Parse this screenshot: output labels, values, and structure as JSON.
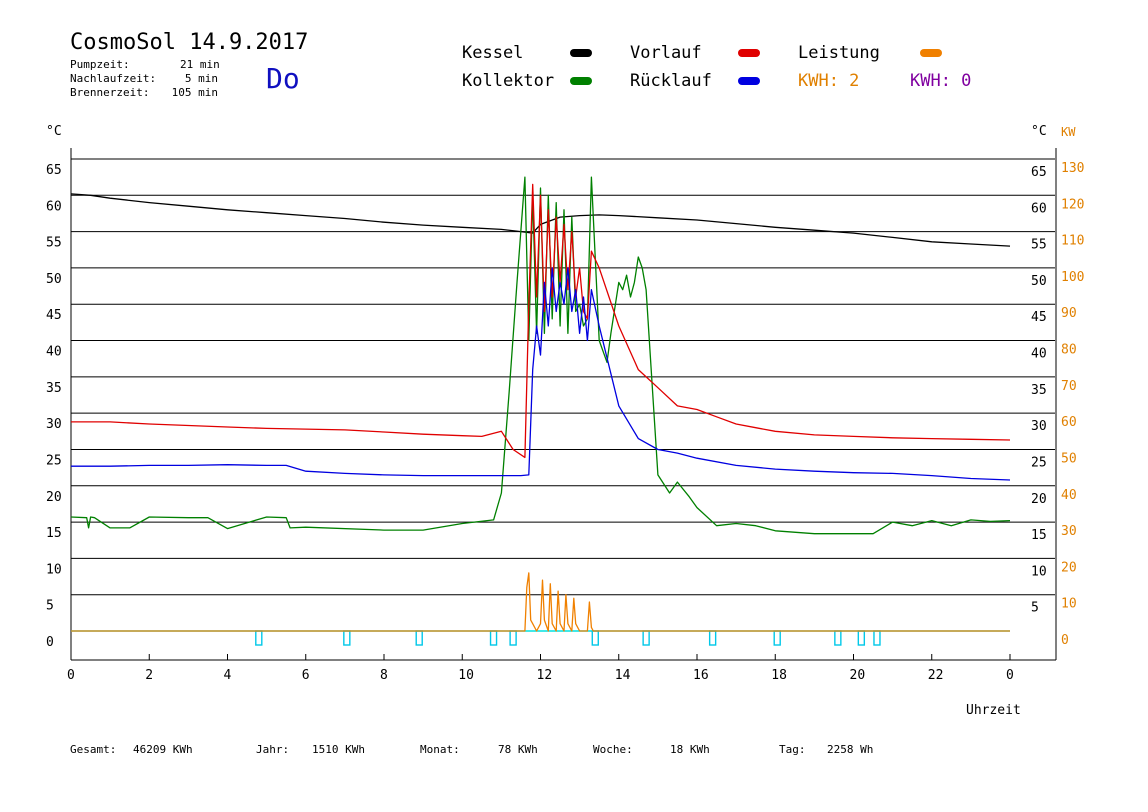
{
  "header": {
    "title": "CosmoSol 14.9.2017",
    "weekday": "Do",
    "info": [
      {
        "label": "Pumpzeit:",
        "value": "21 min"
      },
      {
        "label": "Nachlaufzeit:",
        "value": "5 min"
      },
      {
        "label": "Brennerzeit:",
        "value": "105 min"
      }
    ]
  },
  "legend": {
    "kessel": {
      "label": "Kessel",
      "color": "#000000"
    },
    "kollektor": {
      "label": "Kollektor",
      "color": "#008000"
    },
    "vorlauf": {
      "label": "Vorlauf",
      "color": "#e00000"
    },
    "ruecklauf": {
      "label": "Rücklauf",
      "color": "#0000e0"
    },
    "leistung": {
      "label": "Leistung",
      "color": "#f08000"
    },
    "kwh1": {
      "label": "KWH: 2",
      "color": "#e08000"
    },
    "kwh2": {
      "label": "KWH: 0",
      "color": "#8000a0"
    }
  },
  "footer": {
    "gesamt": {
      "label": "Gesamt:",
      "value": "46209 KWh"
    },
    "jahr": {
      "label": "Jahr:",
      "value": "1510 KWh"
    },
    "monat": {
      "label": "Monat:",
      "value": "78 KWh"
    },
    "woche": {
      "label": "Woche:",
      "value": "18 KWh"
    },
    "tag": {
      "label": "Tag:",
      "value": "2258 Wh"
    }
  },
  "chart_data": {
    "type": "line",
    "xlabel": "Uhrzeit",
    "ylabel_left": "°C",
    "ylabel_right": "°C",
    "ylabel_right2": "KW",
    "xlim": [
      0,
      24
    ],
    "ylim": [
      0,
      65
    ],
    "y2lim": [
      0,
      130
    ],
    "x_ticks": [
      "0",
      "2",
      "4",
      "6",
      "8",
      "10",
      "12",
      "14",
      "16",
      "18",
      "20",
      "22",
      "0"
    ],
    "y_ticks": [
      0,
      5,
      10,
      15,
      20,
      25,
      30,
      35,
      40,
      45,
      50,
      55,
      60,
      65
    ],
    "y2_ticks": [
      0,
      10,
      20,
      30,
      40,
      50,
      60,
      70,
      80,
      90,
      100,
      110,
      120,
      130
    ],
    "grid": "horizontal",
    "series": [
      {
        "name": "Kessel",
        "color": "#000000",
        "x": [
          0,
          0.5,
          1,
          2,
          3,
          4,
          5,
          6,
          7,
          8,
          9,
          10,
          11,
          11.5,
          11.8,
          12,
          12.5,
          13,
          13.5,
          14,
          15,
          16,
          17,
          18,
          19,
          20,
          21,
          22,
          23,
          24
        ],
        "y": [
          60.2,
          60,
          59.6,
          59,
          58.5,
          58,
          57.6,
          57.2,
          56.8,
          56.3,
          55.9,
          55.6,
          55.3,
          55,
          54.8,
          56,
          57,
          57.2,
          57.3,
          57.2,
          56.9,
          56.6,
          56.1,
          55.6,
          55.2,
          54.8,
          54.2,
          53.6,
          53.3,
          53
        ]
      },
      {
        "name": "Kollektor",
        "color": "#008000",
        "x": [
          0,
          0.4,
          0.45,
          0.5,
          0.6,
          1,
          1.5,
          2,
          3,
          3.5,
          4,
          5,
          5.5,
          5.6,
          6,
          8,
          9,
          10,
          10.8,
          11,
          11.2,
          11.4,
          11.6,
          11.7,
          11.8,
          11.9,
          12,
          12.1,
          12.2,
          12.3,
          12.4,
          12.5,
          12.6,
          12.7,
          12.8,
          12.9,
          13,
          13.1,
          13.2,
          13.3,
          13.5,
          13.7,
          13.8,
          14,
          14.1,
          14.2,
          14.3,
          14.4,
          14.5,
          14.6,
          14.7,
          15,
          15.3,
          15.5,
          15.8,
          16,
          16.5,
          17,
          17.5,
          18,
          19,
          20,
          20.5,
          21,
          21.5,
          22,
          22.5,
          23,
          23.5,
          24
        ],
        "y": [
          15.7,
          15.6,
          14.2,
          15.7,
          15.6,
          14.2,
          14.2,
          15.7,
          15.6,
          15.6,
          14.1,
          15.7,
          15.6,
          14.2,
          14.3,
          13.9,
          13.9,
          14.8,
          15.3,
          19,
          33,
          48,
          62.5,
          40,
          60,
          41,
          61,
          41,
          60,
          43,
          59,
          42,
          58,
          41,
          57,
          44,
          45,
          42,
          43,
          62.5,
          40,
          37,
          41,
          48,
          47,
          49,
          46,
          48,
          51.5,
          50,
          47,
          21.5,
          19,
          20.5,
          18.5,
          17,
          14.5,
          14.8,
          14.5,
          13.8,
          13.4,
          13.4,
          13.4,
          15,
          14.5,
          15.2,
          14.5,
          15.3,
          15.1,
          15.2
        ]
      },
      {
        "name": "Vorlauf",
        "color": "#e00000",
        "x": [
          0,
          1,
          2,
          3,
          4,
          5,
          6,
          7,
          8,
          9,
          10,
          10.5,
          11,
          11.3,
          11.6,
          11.7,
          11.8,
          11.9,
          12,
          12.1,
          12.2,
          12.3,
          12.4,
          12.5,
          12.6,
          12.7,
          12.8,
          12.9,
          13,
          13.1,
          13.2,
          13.3,
          13.5,
          14,
          14.5,
          15,
          15.5,
          16,
          16.5,
          17,
          17.5,
          18,
          19,
          20,
          21,
          22,
          23,
          24
        ],
        "y": [
          28.8,
          28.8,
          28.5,
          28.3,
          28.1,
          27.9,
          27.8,
          27.7,
          27.4,
          27.1,
          26.9,
          26.8,
          27.5,
          25,
          23.9,
          45,
          61.5,
          46,
          60,
          44,
          58,
          46,
          57,
          48,
          56,
          47,
          55,
          46,
          50,
          44,
          43,
          52.3,
          50,
          42,
          36,
          33.5,
          31,
          30.5,
          29.5,
          28.5,
          28,
          27.5,
          27,
          26.8,
          26.6,
          26.5,
          26.4,
          26.3
        ]
      },
      {
        "name": "Rücklauf",
        "color": "#0000e0",
        "x": [
          0,
          1,
          2,
          3,
          4,
          5,
          5.5,
          6,
          7,
          8,
          9,
          10,
          11,
          11.2,
          11.5,
          11.7,
          11.8,
          11.9,
          12,
          12.1,
          12.2,
          12.3,
          12.4,
          12.5,
          12.6,
          12.7,
          12.8,
          12.9,
          13,
          13.1,
          13.2,
          13.3,
          13.5,
          14,
          14.5,
          15,
          15.5,
          16,
          17,
          18,
          19,
          20,
          21,
          22,
          23,
          24
        ],
        "y": [
          22.7,
          22.7,
          22.8,
          22.8,
          22.9,
          22.8,
          22.8,
          22,
          21.7,
          21.5,
          21.4,
          21.4,
          21.4,
          21.4,
          21.4,
          21.5,
          36,
          42,
          38,
          48,
          42,
          50,
          44,
          48,
          45,
          50,
          44,
          47,
          41,
          46,
          40,
          47,
          42,
          31,
          26.5,
          25,
          24.5,
          23.8,
          22.8,
          22.3,
          22,
          21.8,
          21.7,
          21.4,
          21,
          20.8
        ]
      },
      {
        "name": "Leistung",
        "color": "#f08000",
        "axis": "right",
        "x": [
          0,
          11.6,
          11.65,
          11.7,
          11.75,
          11.8,
          11.9,
          12,
          12.05,
          12.1,
          12.2,
          12.25,
          12.3,
          12.4,
          12.45,
          12.5,
          12.6,
          12.65,
          12.7,
          12.8,
          12.85,
          12.9,
          13,
          13.2,
          13.25,
          13.3,
          13.35,
          24
        ],
        "y": [
          0,
          0,
          12,
          16,
          3,
          2,
          0,
          2,
          14,
          3,
          0,
          13,
          2,
          0,
          11,
          2,
          0,
          10,
          2,
          0,
          9,
          2,
          0,
          0,
          8,
          1,
          0,
          0
        ]
      }
    ],
    "pump_markers_x": [
      4.8,
      7.05,
      8.9,
      10.8,
      11.3,
      13.4,
      14.7,
      16.4,
      18.05,
      19.6,
      20.2,
      20.6
    ]
  }
}
